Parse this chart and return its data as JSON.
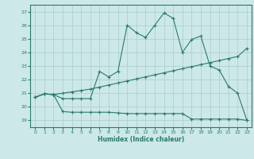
{
  "bg_color": "#cce8e8",
  "grid_color": "#aacccc",
  "line_color": "#2a7a6a",
  "xlabel": "Humidex (Indice chaleur)",
  "xlim": [
    -0.5,
    23.5
  ],
  "ylim": [
    18.5,
    27.5
  ],
  "yticks": [
    19,
    20,
    21,
    22,
    23,
    24,
    25,
    26,
    27
  ],
  "xticks": [
    0,
    1,
    2,
    3,
    4,
    5,
    6,
    7,
    8,
    9,
    10,
    11,
    12,
    13,
    14,
    15,
    16,
    17,
    18,
    19,
    20,
    21,
    22,
    23
  ],
  "line1_x": [
    0,
    1,
    2,
    3,
    4,
    5,
    6,
    7,
    8,
    9,
    10,
    11,
    12,
    13,
    14,
    15,
    16,
    17,
    18,
    19,
    20,
    21,
    22,
    23
  ],
  "line1_y": [
    20.7,
    20.95,
    20.9,
    20.6,
    20.6,
    20.6,
    20.6,
    22.6,
    22.2,
    22.6,
    26.0,
    25.45,
    25.1,
    26.0,
    26.9,
    26.5,
    24.0,
    24.95,
    25.2,
    23.0,
    22.7,
    21.5,
    21.0,
    19.0
  ],
  "line2_x": [
    0,
    1,
    2,
    3,
    4,
    5,
    6,
    7,
    8,
    9,
    10,
    11,
    12,
    13,
    14,
    15,
    16,
    17,
    18,
    19,
    20,
    21,
    22,
    23
  ],
  "line2_y": [
    20.7,
    20.95,
    20.9,
    21.0,
    21.1,
    21.2,
    21.3,
    21.45,
    21.6,
    21.75,
    21.9,
    22.05,
    22.2,
    22.35,
    22.5,
    22.65,
    22.8,
    22.95,
    23.1,
    23.25,
    23.4,
    23.55,
    23.7,
    24.3
  ],
  "line3_x": [
    0,
    1,
    2,
    3,
    4,
    5,
    6,
    7,
    8,
    9,
    10,
    11,
    12,
    13,
    14,
    15,
    16,
    17,
    18,
    19,
    20,
    21,
    22,
    23
  ],
  "line3_y": [
    20.7,
    20.95,
    20.9,
    19.65,
    19.6,
    19.6,
    19.6,
    19.6,
    19.6,
    19.55,
    19.5,
    19.5,
    19.5,
    19.5,
    19.5,
    19.5,
    19.5,
    19.1,
    19.1,
    19.1,
    19.1,
    19.1,
    19.1,
    19.0
  ]
}
